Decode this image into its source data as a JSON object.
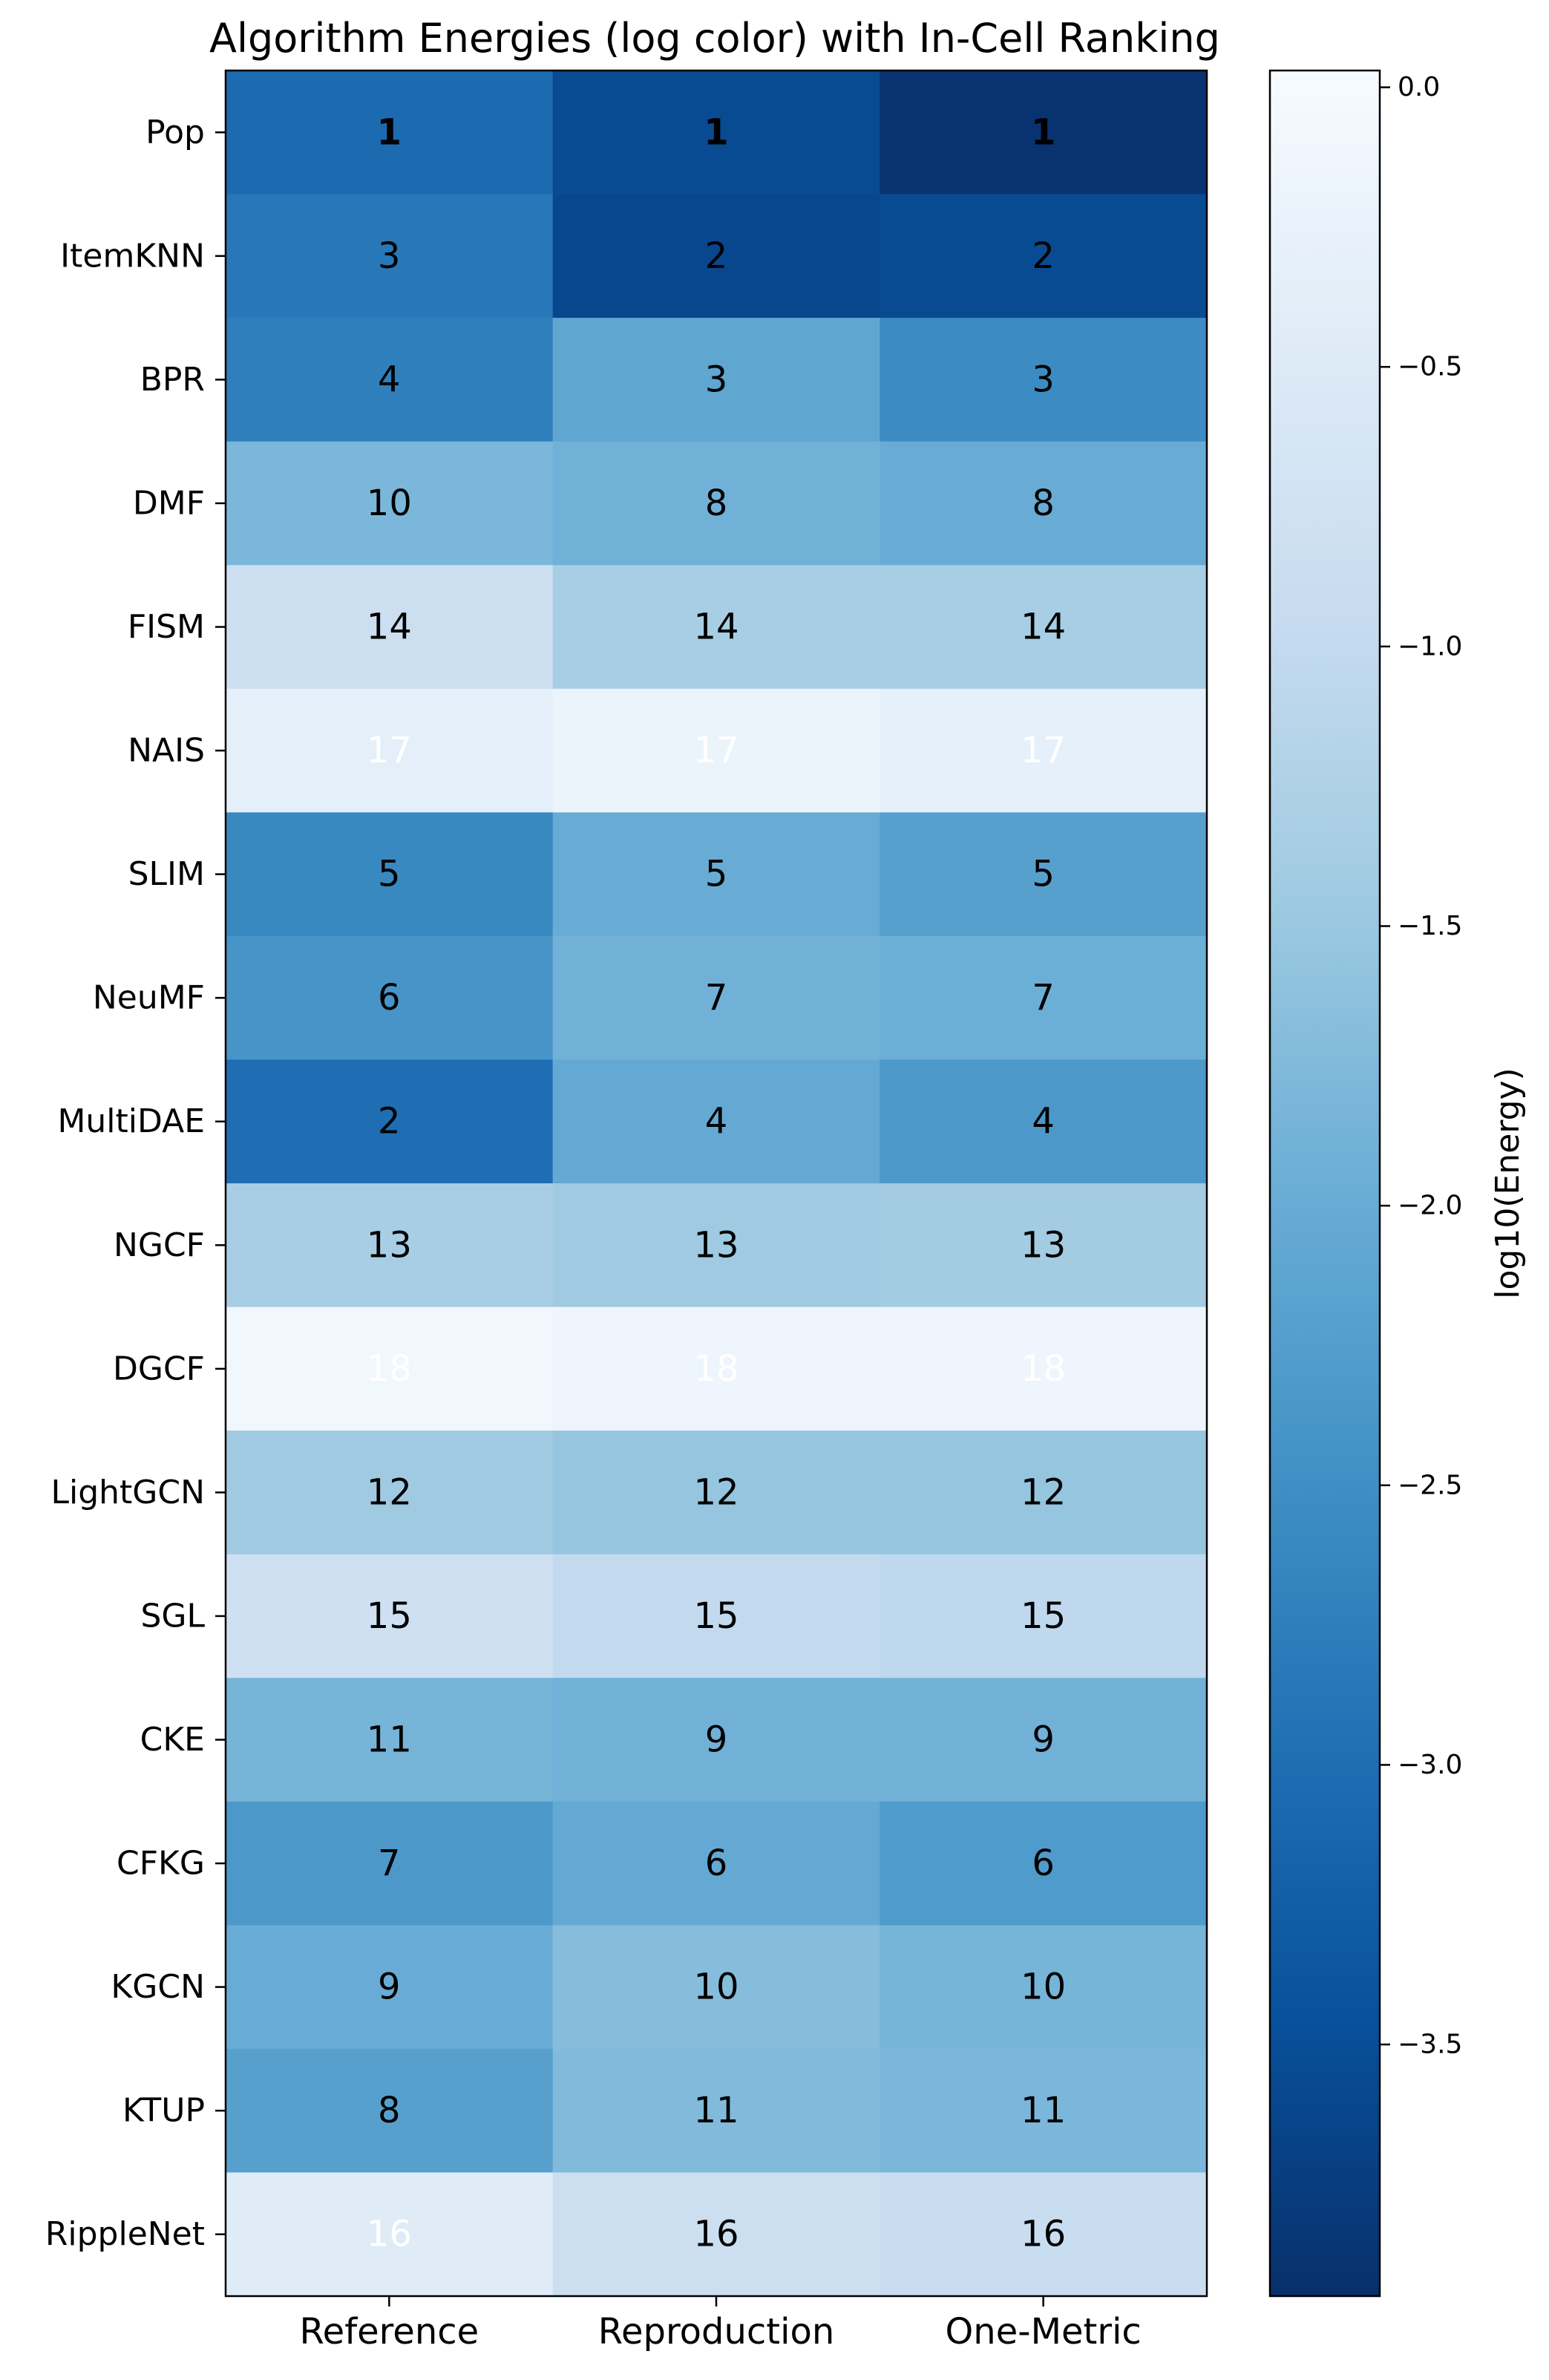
{
  "chart_data": {
    "type": "heatmap",
    "title": "Algorithm Energies (log color) with In-Cell Ranking",
    "columns": [
      "Reference",
      "Reproduction",
      "One-Metric"
    ],
    "rows": [
      "Pop",
      "ItemKNN",
      "BPR",
      "DMF",
      "FISM",
      "NAIS",
      "SLIM",
      "NeuMF",
      "MultiDAE",
      "NGCF",
      "DGCF",
      "LightGCN",
      "SGL",
      "CKE",
      "CFKG",
      "KGCN",
      "KTUP",
      "RippleNet"
    ],
    "ranks": [
      [
        1,
        1,
        1
      ],
      [
        3,
        2,
        2
      ],
      [
        4,
        3,
        3
      ],
      [
        10,
        8,
        8
      ],
      [
        14,
        14,
        14
      ],
      [
        17,
        17,
        17
      ],
      [
        5,
        5,
        5
      ],
      [
        6,
        7,
        7
      ],
      [
        2,
        4,
        4
      ],
      [
        13,
        13,
        13
      ],
      [
        18,
        18,
        18
      ],
      [
        12,
        12,
        12
      ],
      [
        15,
        15,
        15
      ],
      [
        11,
        9,
        9
      ],
      [
        7,
        6,
        6
      ],
      [
        9,
        10,
        10
      ],
      [
        8,
        11,
        11
      ],
      [
        16,
        16,
        16
      ]
    ],
    "log10_energy": [
      [
        -3.05,
        -3.55,
        -3.9
      ],
      [
        -2.85,
        -3.6,
        -3.55
      ],
      [
        -2.75,
        -2.1,
        -2.55
      ],
      [
        -1.8,
        -1.9,
        -2.0
      ],
      [
        -0.85,
        -1.35,
        -1.35
      ],
      [
        -0.35,
        -0.2,
        -0.3
      ],
      [
        -2.6,
        -2.0,
        -2.2
      ],
      [
        -2.4,
        -1.9,
        -1.95
      ],
      [
        -3.0,
        -2.05,
        -2.35
      ],
      [
        -1.35,
        -1.45,
        -1.4
      ],
      [
        -0.1,
        -0.15,
        -0.15
      ],
      [
        -1.45,
        -1.55,
        -1.55
      ],
      [
        -0.8,
        -1.0,
        -1.05
      ],
      [
        -1.85,
        -1.9,
        -1.9
      ],
      [
        -2.35,
        -2.05,
        -2.3
      ],
      [
        -2.0,
        -1.7,
        -1.85
      ],
      [
        -2.2,
        -1.75,
        -1.8
      ],
      [
        -0.45,
        -0.85,
        -0.9
      ]
    ],
    "colorbar": {
      "label": "log10(Energy)",
      "range": [
        -3.95,
        0.03
      ],
      "ticks": [
        0.0,
        -0.5,
        -1.0,
        -1.5,
        -2.0,
        -2.5,
        -3.0,
        -3.5
      ],
      "tick_labels": [
        "0.0",
        "−0.5",
        "−1.0",
        "−1.5",
        "−2.0",
        "−2.5",
        "−3.0",
        "−3.5"
      ]
    },
    "colormap": "Blues_r",
    "colormap_stops": [
      "#08306b",
      "#08519c",
      "#2171b5",
      "#4292c6",
      "#6baed6",
      "#9ecae1",
      "#c6dbef",
      "#deebf7",
      "#f7fbff"
    ]
  }
}
